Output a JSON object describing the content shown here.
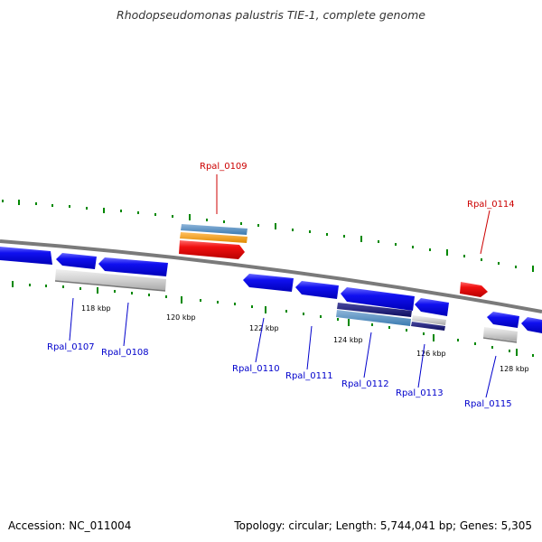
{
  "title": "Rhodopseudomonas palustris TIE-1, complete genome",
  "footer": {
    "accession": "Accession: NC_011004",
    "summary": "Topology: circular; Length: 5,744,041 bp; Genes: 5,305"
  },
  "ticks": [
    "118 kbp",
    "120 kbp",
    "122 kbp",
    "124 kbp",
    "126 kbp",
    "128 kbp"
  ],
  "genes": {
    "forward": [
      "Rpal_0109",
      "Rpal_0114"
    ],
    "reverse": [
      "Rpal_0107",
      "Rpal_0108",
      "Rpal_0110",
      "Rpal_0111",
      "Rpal_0112",
      "Rpal_0113",
      "Rpal_0115"
    ]
  },
  "colors": {
    "cds": "#0000ee",
    "forward_cds": "#ee0000",
    "backbone": "#808080",
    "tick": "#008800",
    "forward_label": "#cc0000",
    "reverse_label": "#0000cc"
  }
}
